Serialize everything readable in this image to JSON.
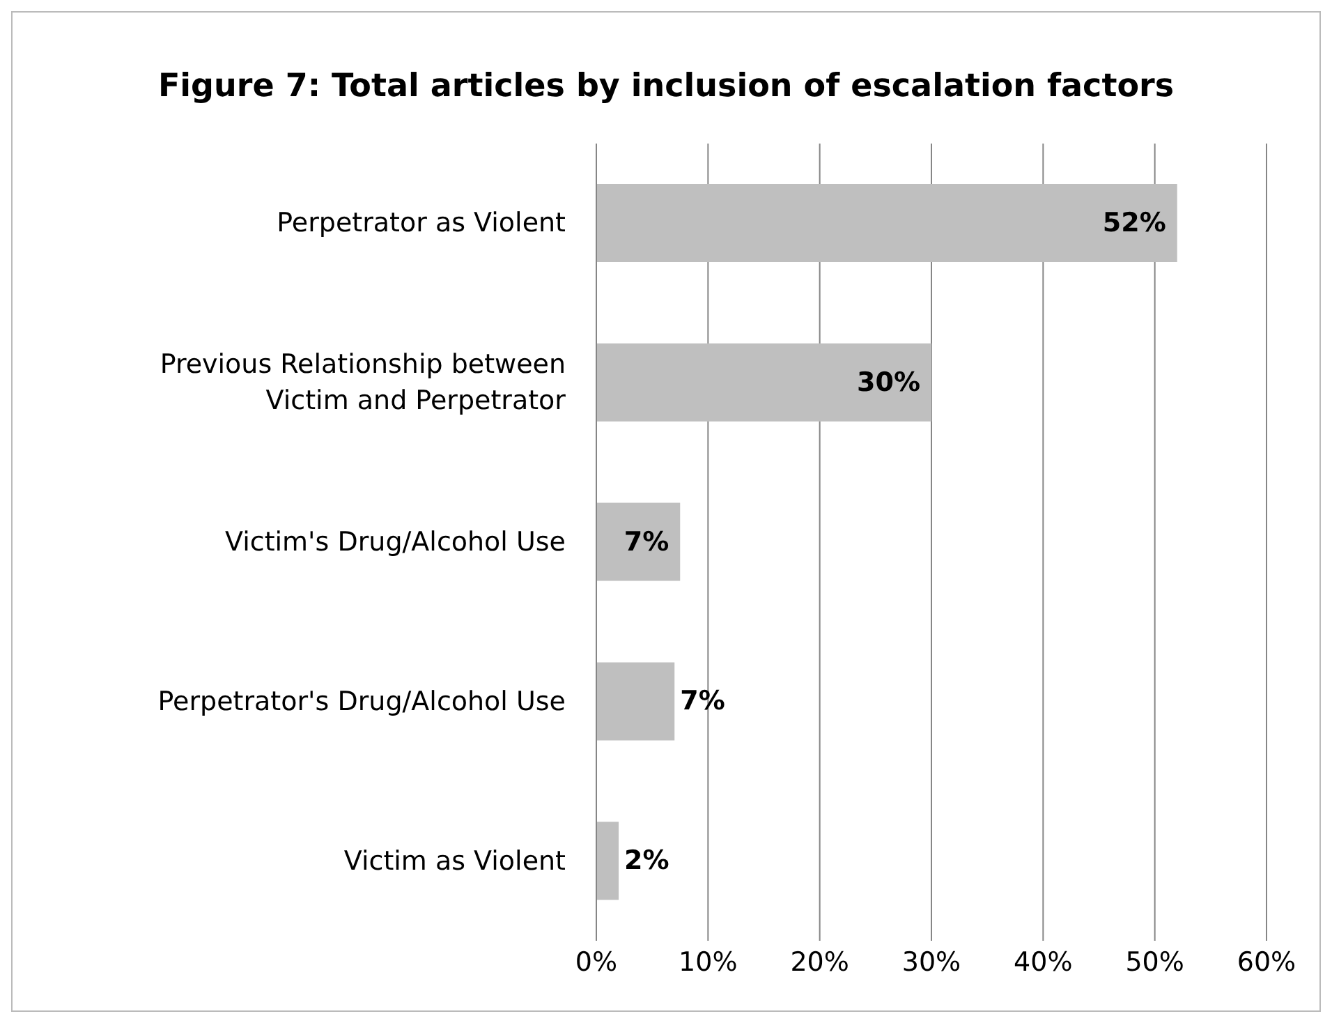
{
  "chart_data": {
    "type": "bar",
    "orientation": "horizontal",
    "title": "Figure 7: Total articles by inclusion of escalation factors",
    "categories": [
      "Perpetrator as Violent",
      "Previous Relationship between Victim and Perpetrator",
      "Victim's Drug/Alcohol Use",
      "Perpetrator's Drug/Alcohol Use",
      "Victim as Violent"
    ],
    "values": [
      52,
      30,
      7.5,
      7,
      2
    ],
    "value_labels": [
      "52%",
      "30%",
      "7%",
      "7%",
      "2%"
    ],
    "color": "#bfbfbf",
    "xlim": [
      0,
      60
    ],
    "xticks": [
      {
        "value": 0,
        "label": "0%"
      },
      {
        "value": 10,
        "label": "10%"
      },
      {
        "value": 20,
        "label": "20%"
      },
      {
        "value": 30,
        "label": "30%"
      },
      {
        "value": 40,
        "label": "40%"
      },
      {
        "value": 50,
        "label": "50%"
      },
      {
        "value": 60,
        "label": "60%"
      }
    ],
    "grid": "x"
  }
}
